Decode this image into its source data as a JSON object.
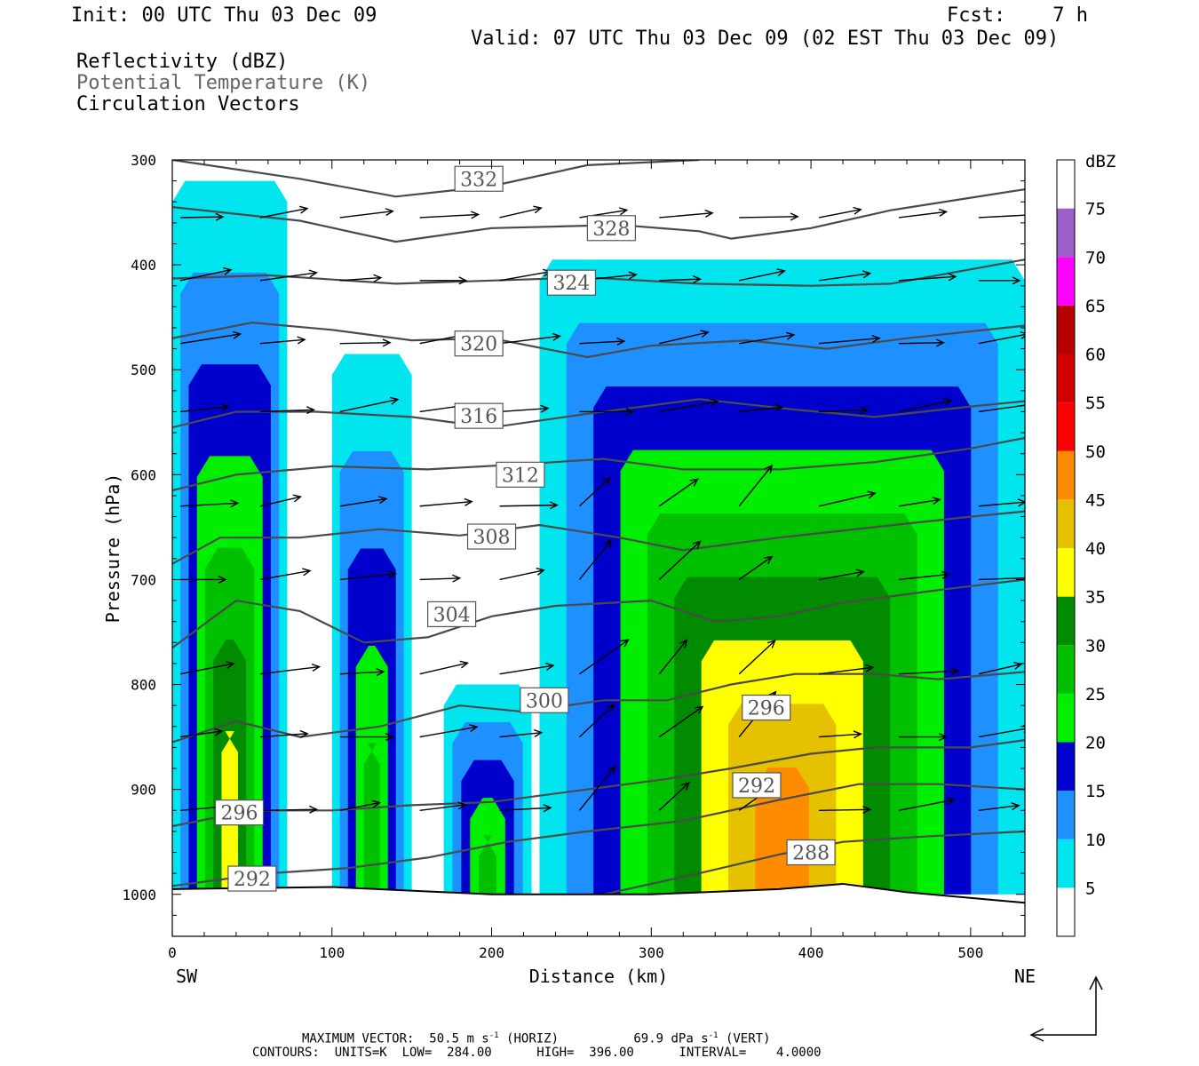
{
  "header": {
    "init": "Init: 00 UTC Thu 03 Dec 09",
    "fcst_label": "Fcst:",
    "fcst_value": "7 h",
    "valid": "Valid: 07 UTC Thu 03 Dec 09 (02 EST Thu 03 Dec 09)",
    "field1": "Reflectivity (dBZ)",
    "field2": "Potential Temperature (K)",
    "field3": "Circulation Vectors"
  },
  "footer": {
    "max_prefix": "MAXIMUM VECTOR:",
    "max_horiz_value": "50.5",
    "max_horiz_unit": "m s",
    "max_horiz_suffix": "(HORIZ)",
    "max_vert_value": "69.9",
    "max_vert_unit": "dPa s",
    "max_vert_suffix": "(VERT)",
    "exponent": "-1",
    "contours": "CONTOURS:  UNITS=K  LOW=  284.00      HIGH=  396.00      INTERVAL=    4.0000"
  },
  "chart_data": {
    "type": "heatmap",
    "xlabel": "Distance (km)",
    "ylabel": "Pressure (hPa)",
    "xlim": [
      0,
      534
    ],
    "ylim": [
      1040,
      300
    ],
    "xticks": [
      0,
      100,
      200,
      300,
      400,
      500
    ],
    "yticks": [
      300,
      400,
      500,
      600,
      700,
      800,
      900,
      1000
    ],
    "x_end_labels": {
      "left": "SW",
      "right": "NE"
    },
    "colorbar": {
      "title": "dBZ",
      "levels": [
        5,
        10,
        15,
        20,
        25,
        30,
        35,
        40,
        45,
        50,
        55,
        60,
        65,
        70,
        75
      ],
      "colors": [
        "#ffffff",
        "#00e5ee",
        "#1e90ff",
        "#0000cd",
        "#00ee00",
        "#00c000",
        "#008b00",
        "#ffff00",
        "#e5c100",
        "#ff8c00",
        "#ff0000",
        "#d40000",
        "#b40000",
        "#ff00ff",
        "#9a5fc8"
      ]
    },
    "columns": [
      {
        "x0": 0,
        "x1": 72,
        "top": 320,
        "core": [
          20,
          35
        ]
      },
      {
        "x0": 100,
        "x1": 150,
        "top": 485,
        "core": [
          15,
          25
        ]
      },
      {
        "x0": 170,
        "x1": 225,
        "top": 800,
        "core": [
          20,
          25
        ]
      },
      {
        "x0": 230,
        "x1": 534,
        "top": 395,
        "core": [
          25,
          45
        ]
      }
    ],
    "theta_contours": [
      {
        "value": 332,
        "points": [
          [
            0,
            300
          ],
          [
            80,
            318
          ],
          [
            140,
            335
          ],
          [
            200,
            325
          ],
          [
            260,
            305
          ],
          [
            330,
            300
          ]
        ]
      },
      {
        "value": 328,
        "points": [
          [
            0,
            345
          ],
          [
            80,
            358
          ],
          [
            140,
            378
          ],
          [
            200,
            365
          ],
          [
            280,
            362
          ],
          [
            330,
            368
          ],
          [
            350,
            375
          ],
          [
            400,
            365
          ],
          [
            450,
            348
          ],
          [
            534,
            328
          ]
        ]
      },
      {
        "value": 324,
        "points": [
          [
            0,
            413
          ],
          [
            60,
            410
          ],
          [
            140,
            418
          ],
          [
            200,
            415
          ],
          [
            260,
            412
          ],
          [
            330,
            418
          ],
          [
            400,
            420
          ],
          [
            450,
            418
          ],
          [
            534,
            395
          ]
        ]
      },
      {
        "value": 320,
        "points": [
          [
            0,
            470
          ],
          [
            50,
            455
          ],
          [
            100,
            462
          ],
          [
            150,
            472
          ],
          [
            200,
            470
          ],
          [
            260,
            488
          ],
          [
            300,
            477
          ],
          [
            360,
            472
          ],
          [
            410,
            480
          ],
          [
            460,
            470
          ],
          [
            534,
            458
          ]
        ]
      },
      {
        "value": 316,
        "points": [
          [
            0,
            555
          ],
          [
            40,
            540
          ],
          [
            90,
            540
          ],
          [
            150,
            545
          ],
          [
            200,
            555
          ],
          [
            260,
            542
          ],
          [
            330,
            528
          ],
          [
            390,
            538
          ],
          [
            440,
            545
          ],
          [
            500,
            535
          ],
          [
            534,
            530
          ]
        ]
      },
      {
        "value": 312,
        "points": [
          [
            0,
            615
          ],
          [
            40,
            600
          ],
          [
            100,
            592
          ],
          [
            160,
            595
          ],
          [
            220,
            590
          ],
          [
            270,
            585
          ],
          [
            320,
            595
          ],
          [
            380,
            595
          ],
          [
            440,
            588
          ],
          [
            500,
            575
          ],
          [
            534,
            565
          ]
        ]
      },
      {
        "value": 308,
        "points": [
          [
            0,
            685
          ],
          [
            30,
            660
          ],
          [
            80,
            660
          ],
          [
            130,
            652
          ],
          [
            180,
            658
          ],
          [
            230,
            648
          ],
          [
            280,
            660
          ],
          [
            320,
            672
          ],
          [
            380,
            660
          ],
          [
            440,
            650
          ],
          [
            500,
            640
          ],
          [
            534,
            635
          ]
        ]
      },
      {
        "value": 304,
        "points": [
          [
            0,
            765
          ],
          [
            40,
            720
          ],
          [
            80,
            730
          ],
          [
            120,
            760
          ],
          [
            160,
            755
          ],
          [
            200,
            735
          ],
          [
            240,
            725
          ],
          [
            300,
            720
          ],
          [
            340,
            740
          ],
          [
            380,
            735
          ],
          [
            420,
            722
          ],
          [
            480,
            710
          ],
          [
            534,
            700
          ]
        ]
      },
      {
        "value": 300,
        "points": [
          [
            0,
            855
          ],
          [
            40,
            835
          ],
          [
            80,
            850
          ],
          [
            130,
            840
          ],
          [
            180,
            820
          ],
          [
            220,
            826
          ],
          [
            270,
            815
          ],
          [
            310,
            815
          ],
          [
            350,
            800
          ],
          [
            390,
            790
          ],
          [
            440,
            790
          ],
          [
            480,
            795
          ],
          [
            534,
            788
          ]
        ]
      },
      {
        "value": 296,
        "points": [
          [
            0,
            935
          ],
          [
            50,
            920
          ],
          [
            100,
            920
          ],
          [
            150,
            915
          ],
          [
            200,
            912
          ],
          [
            260,
            900
          ],
          [
            310,
            890
          ],
          [
            350,
            880
          ],
          [
            400,
            866
          ],
          [
            440,
            860
          ],
          [
            500,
            860
          ],
          [
            534,
            853
          ]
        ]
      },
      {
        "value": 292,
        "points": [
          [
            0,
            992
          ],
          [
            60,
            980
          ],
          [
            110,
            975
          ],
          [
            160,
            965
          ],
          [
            210,
            950
          ],
          [
            260,
            940
          ],
          [
            320,
            930
          ],
          [
            380,
            910
          ],
          [
            430,
            895
          ],
          [
            480,
            895
          ],
          [
            534,
            900
          ]
        ]
      },
      {
        "value": 288,
        "points": [
          [
            270,
            1000
          ],
          [
            330,
            980
          ],
          [
            380,
            962
          ],
          [
            420,
            950
          ],
          [
            470,
            945
          ],
          [
            534,
            940
          ]
        ]
      }
    ],
    "contour_labels": [
      {
        "value": "332",
        "x": 192,
        "p": 318
      },
      {
        "value": "328",
        "x": 275,
        "p": 365
      },
      {
        "value": "324",
        "x": 250,
        "p": 417
      },
      {
        "value": "320",
        "x": 192,
        "p": 475
      },
      {
        "value": "316",
        "x": 192,
        "p": 544
      },
      {
        "value": "312",
        "x": 218,
        "p": 600
      },
      {
        "value": "308",
        "x": 200,
        "p": 659
      },
      {
        "value": "304",
        "x": 175,
        "p": 733
      },
      {
        "value": "300",
        "x": 233,
        "p": 815
      },
      {
        "value": "296",
        "x": 372,
        "p": 822
      },
      {
        "value": "292",
        "x": 366,
        "p": 896
      },
      {
        "value": "288",
        "x": 400,
        "p": 960
      },
      {
        "value": "296",
        "x": 42,
        "p": 922
      },
      {
        "value": "292",
        "x": 50,
        "p": 985
      }
    ]
  }
}
